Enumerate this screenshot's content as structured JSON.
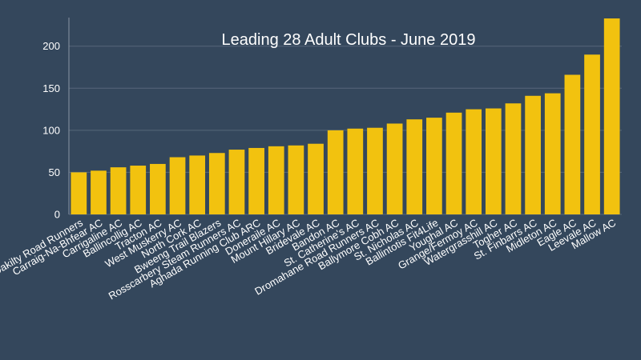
{
  "chart_data": {
    "type": "bar",
    "title": "Leading 28 Adult Clubs - June 2019",
    "xlabel": "",
    "ylabel": "",
    "ylim": [
      0,
      234
    ],
    "yticks": [
      0,
      50,
      100,
      150,
      200
    ],
    "grid": true,
    "legend": "none",
    "bar_color": "#f2c20f",
    "background_color": "#34475c",
    "categories": [
      "Kilbrittain Oakilty Road Runners",
      "Carraig-Na-Bhfear AC",
      "Carrigaline AC",
      "Ballincollig AC",
      "Tracton AC",
      "West Muskerry AC",
      "North Cork AC",
      "Bweeng Trail Blazers",
      "Rosscarbery Steam Runners AC",
      "Aghada Running Club ARC",
      "Doneraile AC",
      "Mount Hillary AC",
      "Bridevale AC",
      "Bandon AC",
      "St. Catherine's AC",
      "Dromahane Road Runners AC",
      "Ballymore Cobh AC",
      "St. Nicholas AC",
      "Ballintotis Fit4Life",
      "Youghal AC",
      "Grange/Fermoy AC",
      "Watergrasshill AC",
      "Togher AC",
      "St. Finbarrs AC",
      "Midleton AC",
      "Eagle AC",
      "Leevale AC",
      "Mallow AC"
    ],
    "values": [
      50,
      52,
      56,
      58,
      60,
      68,
      70,
      73,
      77,
      79,
      81,
      82,
      84,
      100,
      102,
      103,
      108,
      113,
      115,
      121,
      125,
      126,
      132,
      141,
      144,
      166,
      190,
      233
    ]
  }
}
